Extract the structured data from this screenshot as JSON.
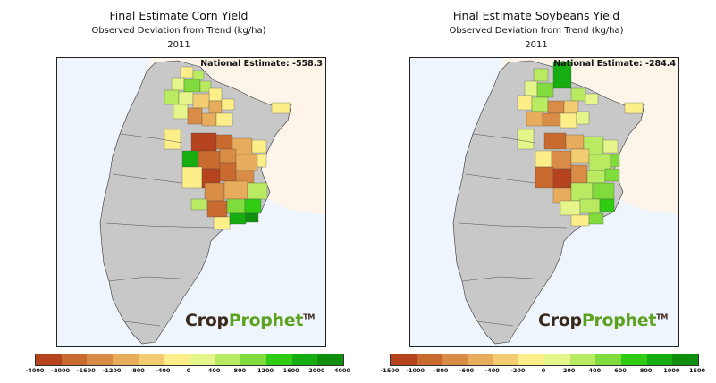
{
  "panels": [
    {
      "title": "Final Estimate Corn Yield",
      "subtitle": "Observed Deviation from Trend (kg/ha)",
      "year": "2011",
      "national_estimate": "National Estimate: -558.3",
      "colorbar_ticks": [
        "-4000",
        "-2000",
        "-1600",
        "-1200",
        "-800",
        "-400",
        "0",
        "400",
        "800",
        "1200",
        "1600",
        "2000",
        "4000"
      ]
    },
    {
      "title": "Final Estimate Soybeans Yield",
      "subtitle": "Observed Deviation from Trend (kg/ha)",
      "year": "2011",
      "national_estimate": "National Estimate: -284.4",
      "colorbar_ticks": [
        "-1500",
        "-1000",
        "-800",
        "-600",
        "-400",
        "-200",
        "0",
        "200",
        "400",
        "600",
        "800",
        "1000",
        "1500"
      ]
    }
  ],
  "logo": {
    "crop": "Crop",
    "prophet": "Prophet",
    "tm": "TM"
  },
  "colors": {
    "scale": [
      "#b5441e",
      "#c96a2f",
      "#d98c45",
      "#e8ad5c",
      "#f3cc72",
      "#fcef8a",
      "#e5f58b",
      "#b8ea62",
      "#7fdc3c",
      "#30cc14",
      "#16ad10",
      "#0f8f0e"
    ],
    "ocean": "#eef5fd",
    "neighbor_land": "#fdf4ea",
    "no_data_region": "#c8c8c8"
  }
}
